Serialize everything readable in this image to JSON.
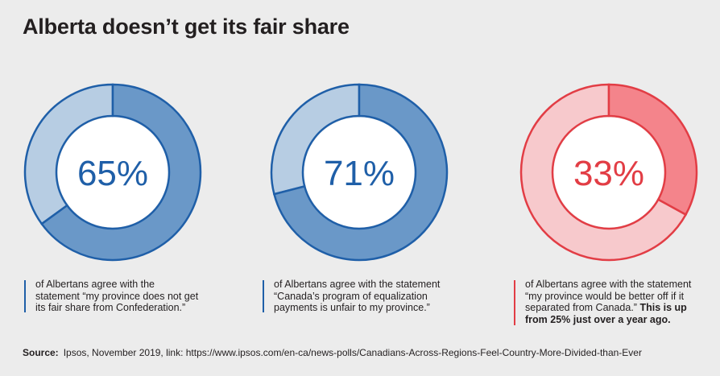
{
  "title": "Alberta doesn’t get its fair share",
  "chart_data": [
    {
      "type": "pie",
      "value": 65,
      "label": "65%",
      "colors": {
        "value": "#6a98c8",
        "rest": "#b7cde3",
        "stroke": "#1f5fa8",
        "text": "#1f5fa8"
      },
      "caption_lines": [
        "of Albertans agree with the",
        "statement “my province does not get",
        "its fair share from Confederation.”"
      ],
      "caption_bold_lines": []
    },
    {
      "type": "pie",
      "value": 71,
      "label": "71%",
      "colors": {
        "value": "#6a98c8",
        "rest": "#b7cde3",
        "stroke": "#1f5fa8",
        "text": "#1f5fa8"
      },
      "caption_lines": [
        "of Albertans agree with the statement",
        "“Canada’s program of equalization",
        "payments is unfair to my province.”"
      ],
      "caption_bold_lines": []
    },
    {
      "type": "pie",
      "value": 33,
      "label": "33%",
      "colors": {
        "value": "#f4848b",
        "rest": "#f7c9cc",
        "stroke": "#e23d45",
        "text": "#e23d45"
      },
      "caption_lines": [
        "of Albertans agree with the statement",
        "“my province would be better off if it",
        "separated from Canada.”"
      ],
      "caption_bold_lines": [
        "This is up",
        "from 25% just over a year ago."
      ]
    }
  ],
  "source": {
    "label": "Source:",
    "text": "Ipsos, November 2019, link: https://www.ipsos.com/en-ca/news-polls/Canadians-Across-Regions-Feel-Country-More-Divided-than-Ever"
  }
}
